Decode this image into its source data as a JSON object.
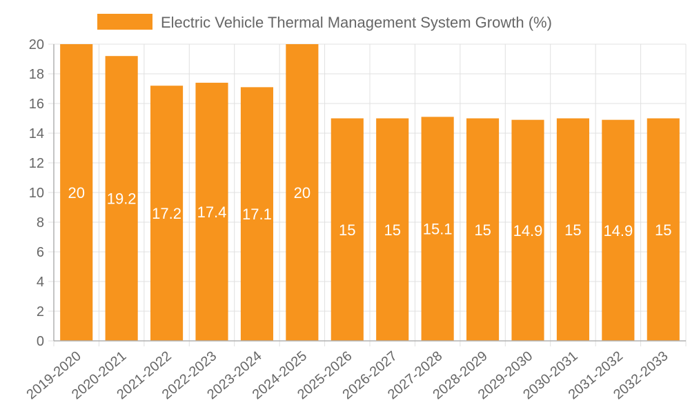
{
  "colors": {
    "bar": "#f7941d",
    "grid": "#e0e0e0",
    "axis": "#b0b0b0",
    "text": "#666666",
    "data_label": "#ffffff"
  },
  "chart_data": {
    "type": "bar",
    "title": "",
    "xlabel": "",
    "ylabel": "",
    "legend": {
      "position": "top",
      "entries": [
        "Electric Vehicle Thermal Management System Growth (%)"
      ]
    },
    "categories": [
      "2019-2020",
      "2020-2021",
      "2021-2022",
      "2022-2023",
      "2023-2024",
      "2024-2025",
      "2025-2026",
      "2026-2027",
      "2027-2028",
      "2028-2029",
      "2029-2030",
      "2030-2031",
      "2031-2032",
      "2032-2033"
    ],
    "series": [
      {
        "name": "Electric Vehicle Thermal Management System Growth (%)",
        "values": [
          20,
          19.2,
          17.2,
          17.4,
          17.1,
          20,
          15,
          15,
          15.1,
          15,
          14.9,
          15,
          14.9,
          15
        ]
      }
    ],
    "ylim": [
      0,
      20
    ],
    "yticks": [
      0,
      2,
      4,
      6,
      8,
      10,
      12,
      14,
      16,
      18,
      20
    ],
    "grid": true
  }
}
